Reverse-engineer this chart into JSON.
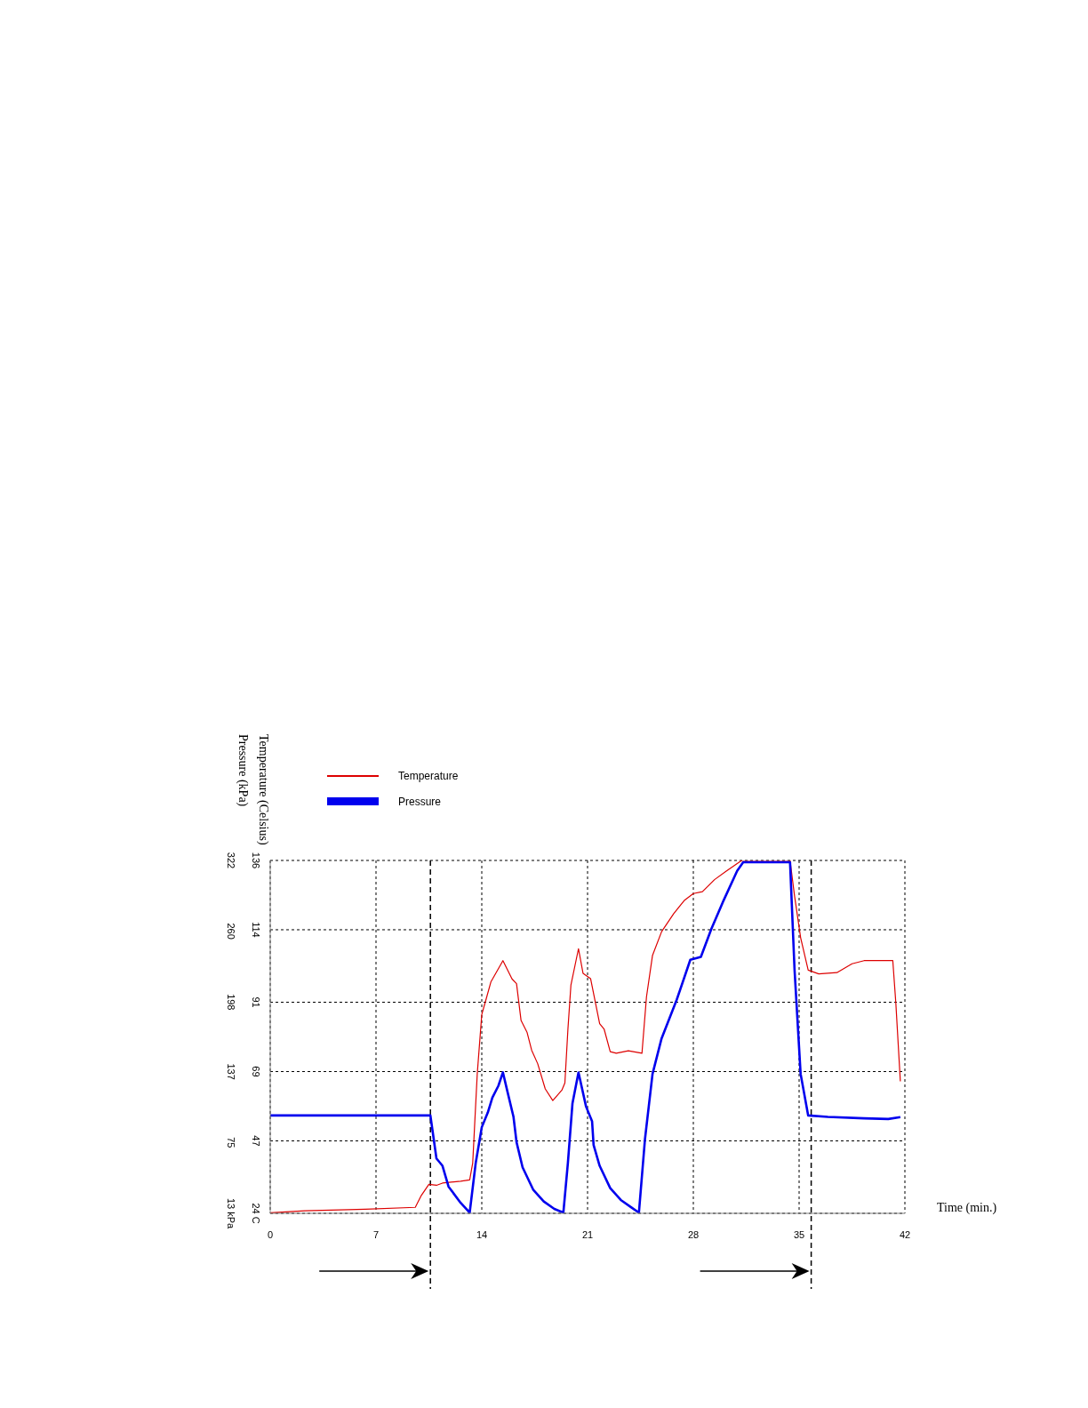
{
  "chart_data": {
    "type": "line",
    "xlabel": "Time (min.)",
    "ylabel": "Temperature (Celsius)",
    "y2label": "Pressure (kPa)",
    "xlim": [
      0,
      42
    ],
    "xticks": [
      0,
      7,
      14,
      21,
      28,
      35,
      42
    ],
    "ylim": [
      24,
      136
    ],
    "yticks": [
      {
        "value": 24,
        "label": "24 C"
      },
      47,
      69,
      91,
      114,
      136
    ],
    "y2lim": [
      13,
      322
    ],
    "y2ticks": [
      {
        "value": 13,
        "label": "13 kPa"
      },
      75,
      137,
      198,
      260,
      322
    ],
    "grid": true,
    "legend": "top left",
    "line_style": "solid",
    "ref_lines": [
      {
        "axis": "x",
        "value": 10.6,
        "color": "#000000",
        "line_style": "dashed"
      },
      {
        "axis": "x",
        "value": 35.8,
        "color": "#000000",
        "line_style": "dashed"
      }
    ],
    "series": [
      {
        "name": "Temperature",
        "color": "#dd0000",
        "x": [
          0,
          2.3,
          6.3,
          9.6,
          10.0,
          10.5,
          11.0,
          11.4,
          12.6,
          13.2,
          13.4,
          13.7,
          14.0,
          14.3,
          14.6,
          15.4,
          16.0,
          16.3,
          16.6,
          17.0,
          17.3,
          17.7,
          18.2,
          18.7,
          19.3,
          19.5,
          19.7,
          19.9,
          20.4,
          20.7,
          21.2,
          21.8,
          22.1,
          22.5,
          22.9,
          23.7,
          24.6,
          24.9,
          25.3,
          25.9,
          26.7,
          27.4,
          28.0,
          28.6,
          29.4,
          30.2,
          31.2,
          34.4,
          34.7,
          35.1,
          35.6,
          36.3,
          37.5,
          38.5,
          39.3,
          41.2,
          41.4,
          41.7
        ],
        "values": [
          24.2,
          24.8,
          25.3,
          25.9,
          29.7,
          33.2,
          32.9,
          33.6,
          34.2,
          34.6,
          40.0,
          68.2,
          87.1,
          92.2,
          97.4,
          104.2,
          98.4,
          96.9,
          85.2,
          81.4,
          75.8,
          71.5,
          63.5,
          59.8,
          63.1,
          65.4,
          82.4,
          96.5,
          108.0,
          100.2,
          98.5,
          84.2,
          82.4,
          75.3,
          74.8,
          75.6,
          74.8,
          92.7,
          105.9,
          113.4,
          119.1,
          123.3,
          125.5,
          126.1,
          129.9,
          132.7,
          136,
          136,
          124.7,
          111.5,
          101.2,
          100.0,
          100.4,
          103.2,
          104.2,
          104.2,
          90.8,
          65.9
        ]
      },
      {
        "name": "Pressure",
        "color": "#0000ee",
        "axis": "y2",
        "x": [
          0,
          10.6,
          11.0,
          11.4,
          11.8,
          12.6,
          13.2,
          13.6,
          14.0,
          14.4,
          14.7,
          15.1,
          15.4,
          15.7,
          16.1,
          16.3,
          16.7,
          17.4,
          18.1,
          18.8,
          19.4,
          19.7,
          20.0,
          20.4,
          20.9,
          21.3,
          21.4,
          21.8,
          22.5,
          23.2,
          23.9,
          24.4,
          24.8,
          25.3,
          25.9,
          26.9,
          27.8,
          28.5,
          29.2,
          30.0,
          30.9,
          31.3,
          34.4,
          34.7,
          35.1,
          35.6,
          36.9,
          39.3,
          40.9,
          41.7
        ],
        "values": [
          98.7,
          98.7,
          61.1,
          54.6,
          36.4,
          22.2,
          13.6,
          57.2,
          88.4,
          101.3,
          114.3,
          124.7,
          136.4,
          119.5,
          97.4,
          75.4,
          53.3,
          33.8,
          23.4,
          16.9,
          13.6,
          57.2,
          109.1,
          136.4,
          106.5,
          93.5,
          72.8,
          54.6,
          35.1,
          24.7,
          18.2,
          13.6,
          78.0,
          135.1,
          166.2,
          200.0,
          235.0,
          237.6,
          262.3,
          286.9,
          312.9,
          320.4,
          320.4,
          225.9,
          135.1,
          98.7,
          97.4,
          96.2,
          95.6,
          97.2
        ]
      }
    ]
  }
}
